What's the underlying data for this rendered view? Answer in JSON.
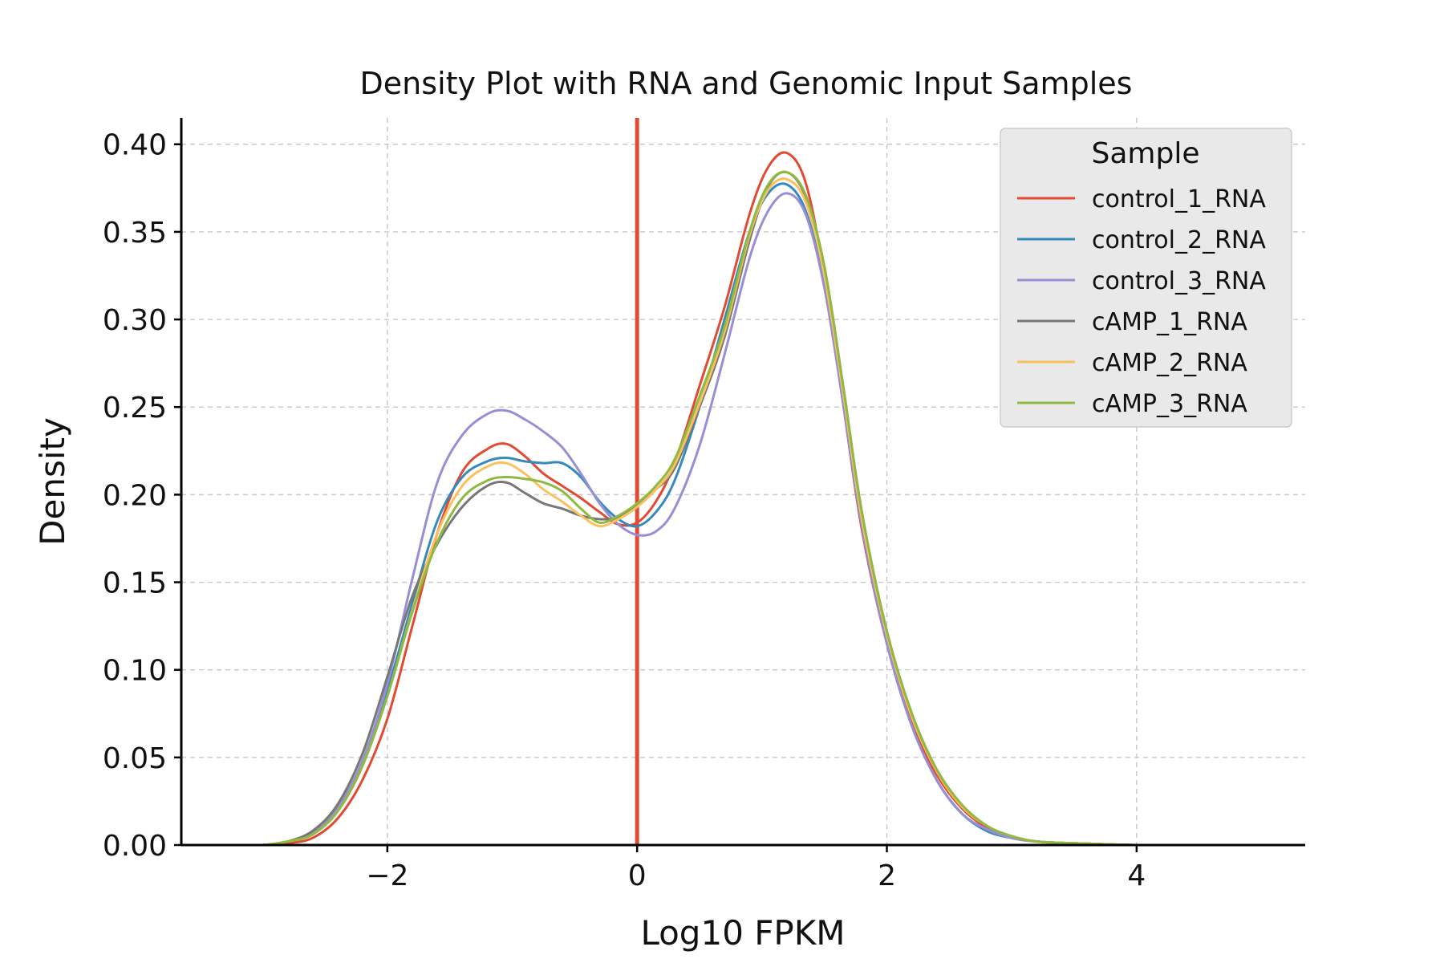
{
  "chart_data": {
    "type": "line",
    "title": "Density Plot with RNA and Genomic Input Samples",
    "xlabel": "Log10 FPKM",
    "ylabel": "Density",
    "xlim": [
      -3.65,
      5.35
    ],
    "ylim": [
      0,
      0.415
    ],
    "xticks": [
      -2,
      0,
      2,
      4
    ],
    "xtick_labels": [
      "−2",
      "0",
      "2",
      "4"
    ],
    "yticks": [
      0,
      0.05,
      0.1,
      0.15,
      0.2,
      0.25,
      0.3,
      0.35,
      0.4
    ],
    "ytick_labels": [
      "0.00",
      "0.05",
      "0.10",
      "0.15",
      "0.20",
      "0.25",
      "0.30",
      "0.35",
      "0.40"
    ],
    "grid": true,
    "legend": {
      "title": "Sample",
      "position": "top-right"
    },
    "vline": {
      "x": 0,
      "color": "#e24a33"
    },
    "x": [
      -3.3,
      -3.0,
      -2.8,
      -2.6,
      -2.4,
      -2.2,
      -2.0,
      -1.8,
      -1.6,
      -1.4,
      -1.2,
      -1.05,
      -0.9,
      -0.75,
      -0.6,
      -0.45,
      -0.3,
      -0.15,
      0.0,
      0.15,
      0.3,
      0.5,
      0.7,
      0.9,
      1.05,
      1.2,
      1.35,
      1.5,
      1.65,
      1.8,
      2.0,
      2.2,
      2.4,
      2.6,
      2.8,
      3.0,
      3.2,
      3.5,
      4.0,
      4.5,
      5.0
    ],
    "series": [
      {
        "name": "control_1_RNA",
        "color": "#e24a33",
        "values": [
          0,
          0,
          0.001,
          0.004,
          0.015,
          0.037,
          0.072,
          0.125,
          0.178,
          0.213,
          0.226,
          0.229,
          0.222,
          0.212,
          0.205,
          0.198,
          0.19,
          0.183,
          0.184,
          0.196,
          0.218,
          0.262,
          0.307,
          0.36,
          0.387,
          0.395,
          0.378,
          0.325,
          0.252,
          0.18,
          0.115,
          0.07,
          0.04,
          0.021,
          0.01,
          0.005,
          0.002,
          0.001,
          0,
          0,
          0
        ]
      },
      {
        "name": "control_2_RNA",
        "color": "#348abd",
        "values": [
          0,
          0,
          0.002,
          0.007,
          0.021,
          0.047,
          0.088,
          0.138,
          0.185,
          0.21,
          0.219,
          0.221,
          0.219,
          0.218,
          0.218,
          0.21,
          0.196,
          0.186,
          0.182,
          0.19,
          0.208,
          0.25,
          0.3,
          0.35,
          0.372,
          0.377,
          0.362,
          0.32,
          0.252,
          0.182,
          0.115,
          0.068,
          0.037,
          0.018,
          0.008,
          0.004,
          0.002,
          0.001,
          0,
          0,
          0
        ]
      },
      {
        "name": "control_3_RNA",
        "color": "#988ed5",
        "values": [
          0,
          0,
          0.002,
          0.007,
          0.021,
          0.048,
          0.092,
          0.152,
          0.207,
          0.234,
          0.246,
          0.248,
          0.243,
          0.236,
          0.227,
          0.212,
          0.195,
          0.183,
          0.177,
          0.179,
          0.192,
          0.228,
          0.28,
          0.335,
          0.362,
          0.372,
          0.36,
          0.318,
          0.252,
          0.182,
          0.115,
          0.068,
          0.037,
          0.018,
          0.009,
          0.004,
          0.002,
          0.001,
          0,
          0,
          0
        ]
      },
      {
        "name": "cAMP_1_RNA",
        "color": "#777777",
        "values": [
          0,
          0,
          0.002,
          0.008,
          0.023,
          0.052,
          0.096,
          0.142,
          0.172,
          0.193,
          0.205,
          0.207,
          0.201,
          0.195,
          0.192,
          0.188,
          0.186,
          0.187,
          0.194,
          0.203,
          0.215,
          0.25,
          0.29,
          0.345,
          0.376,
          0.384,
          0.37,
          0.33,
          0.262,
          0.19,
          0.122,
          0.075,
          0.043,
          0.023,
          0.011,
          0.005,
          0.002,
          0.001,
          0,
          0,
          0
        ]
      },
      {
        "name": "cAMP_2_RNA",
        "color": "#fbc15e",
        "values": [
          0,
          0,
          0.002,
          0.006,
          0.019,
          0.045,
          0.085,
          0.134,
          0.178,
          0.205,
          0.216,
          0.218,
          0.212,
          0.203,
          0.196,
          0.188,
          0.182,
          0.186,
          0.193,
          0.203,
          0.217,
          0.252,
          0.293,
          0.348,
          0.374,
          0.38,
          0.367,
          0.325,
          0.258,
          0.186,
          0.12,
          0.073,
          0.042,
          0.022,
          0.011,
          0.005,
          0.002,
          0.001,
          0,
          0,
          0
        ]
      },
      {
        "name": "cAMP_3_RNA",
        "color": "#8eba42",
        "values": [
          0,
          0,
          0.002,
          0.006,
          0.019,
          0.045,
          0.085,
          0.133,
          0.173,
          0.198,
          0.208,
          0.21,
          0.209,
          0.207,
          0.202,
          0.192,
          0.184,
          0.188,
          0.195,
          0.205,
          0.22,
          0.256,
          0.296,
          0.35,
          0.377,
          0.384,
          0.371,
          0.33,
          0.262,
          0.19,
          0.122,
          0.075,
          0.043,
          0.023,
          0.011,
          0.005,
          0.002,
          0.001,
          0,
          0,
          0
        ]
      }
    ]
  }
}
